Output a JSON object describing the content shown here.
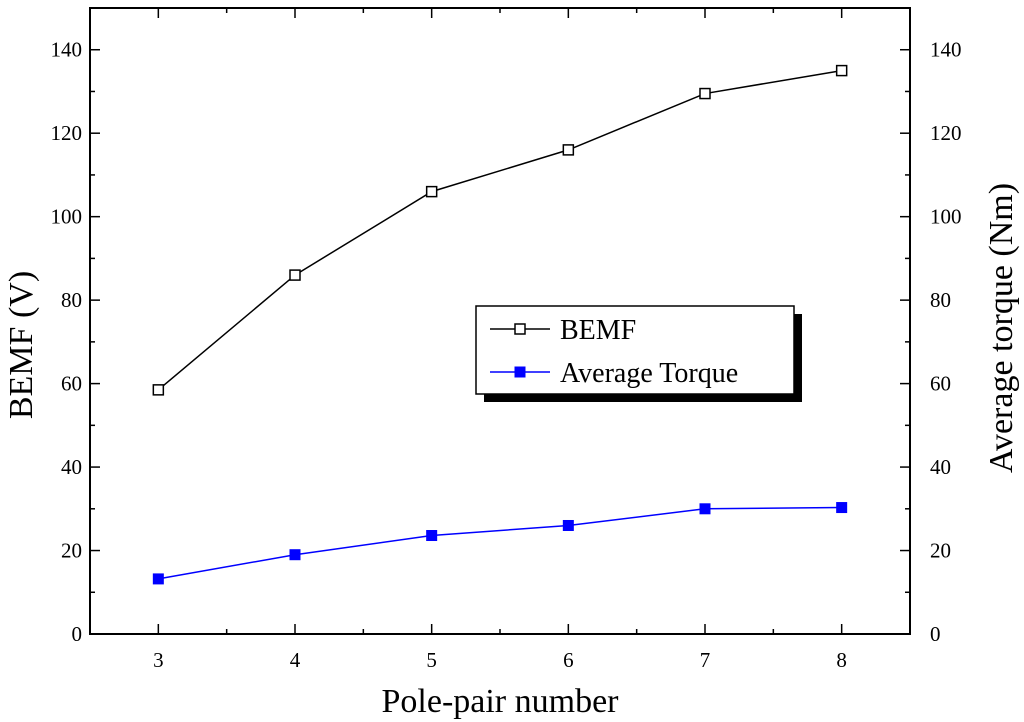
{
  "chart_data": {
    "type": "line",
    "x": [
      3,
      4,
      5,
      6,
      7,
      8
    ],
    "xlabel": "Pole-pair number",
    "ylabel": "BEMF (V)",
    "y2label": "Average torque (Nm)",
    "xlim": [
      2.5,
      8.5
    ],
    "ylim": [
      0,
      150
    ],
    "y2lim": [
      0,
      150
    ],
    "xticks": [
      "3",
      "4",
      "5",
      "6",
      "7",
      "8"
    ],
    "yticks": [
      "0",
      "20",
      "40",
      "60",
      "80",
      "100",
      "120",
      "140"
    ],
    "y2ticks": [
      "0",
      "20",
      "40",
      "60",
      "80",
      "100",
      "120",
      "140"
    ],
    "grid": false,
    "legend_position": "center-right",
    "series": [
      {
        "name": "BEMF",
        "values": [
          58.5,
          86,
          106,
          116,
          129.5,
          135
        ],
        "color": "#000000",
        "marker": "open-square",
        "axis": "left"
      },
      {
        "name": "Average Torque",
        "values": [
          13.2,
          19,
          23.6,
          26,
          30,
          30.3
        ],
        "color": "#0000ff",
        "marker": "filled-square",
        "axis": "right"
      }
    ]
  }
}
